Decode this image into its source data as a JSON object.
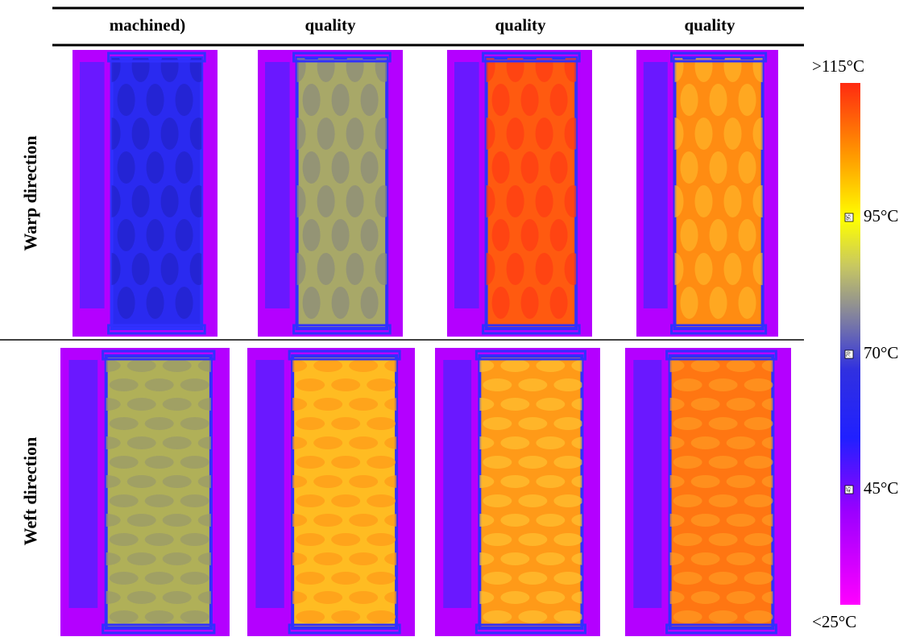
{
  "header": {
    "columns": [
      "machined)",
      "quality",
      "quality",
      "quality"
    ]
  },
  "rows": [
    {
      "label": "Warp direction"
    },
    {
      "label": "Weft direction"
    }
  ],
  "colorbar": {
    "max_label": ">115°C",
    "min_label": "<25°C",
    "ticks": [
      {
        "label": "95°C",
        "marker": "95"
      },
      {
        "label": "70°C",
        "marker": "70"
      },
      {
        "label": "45°C",
        "marker": "45"
      }
    ]
  }
}
